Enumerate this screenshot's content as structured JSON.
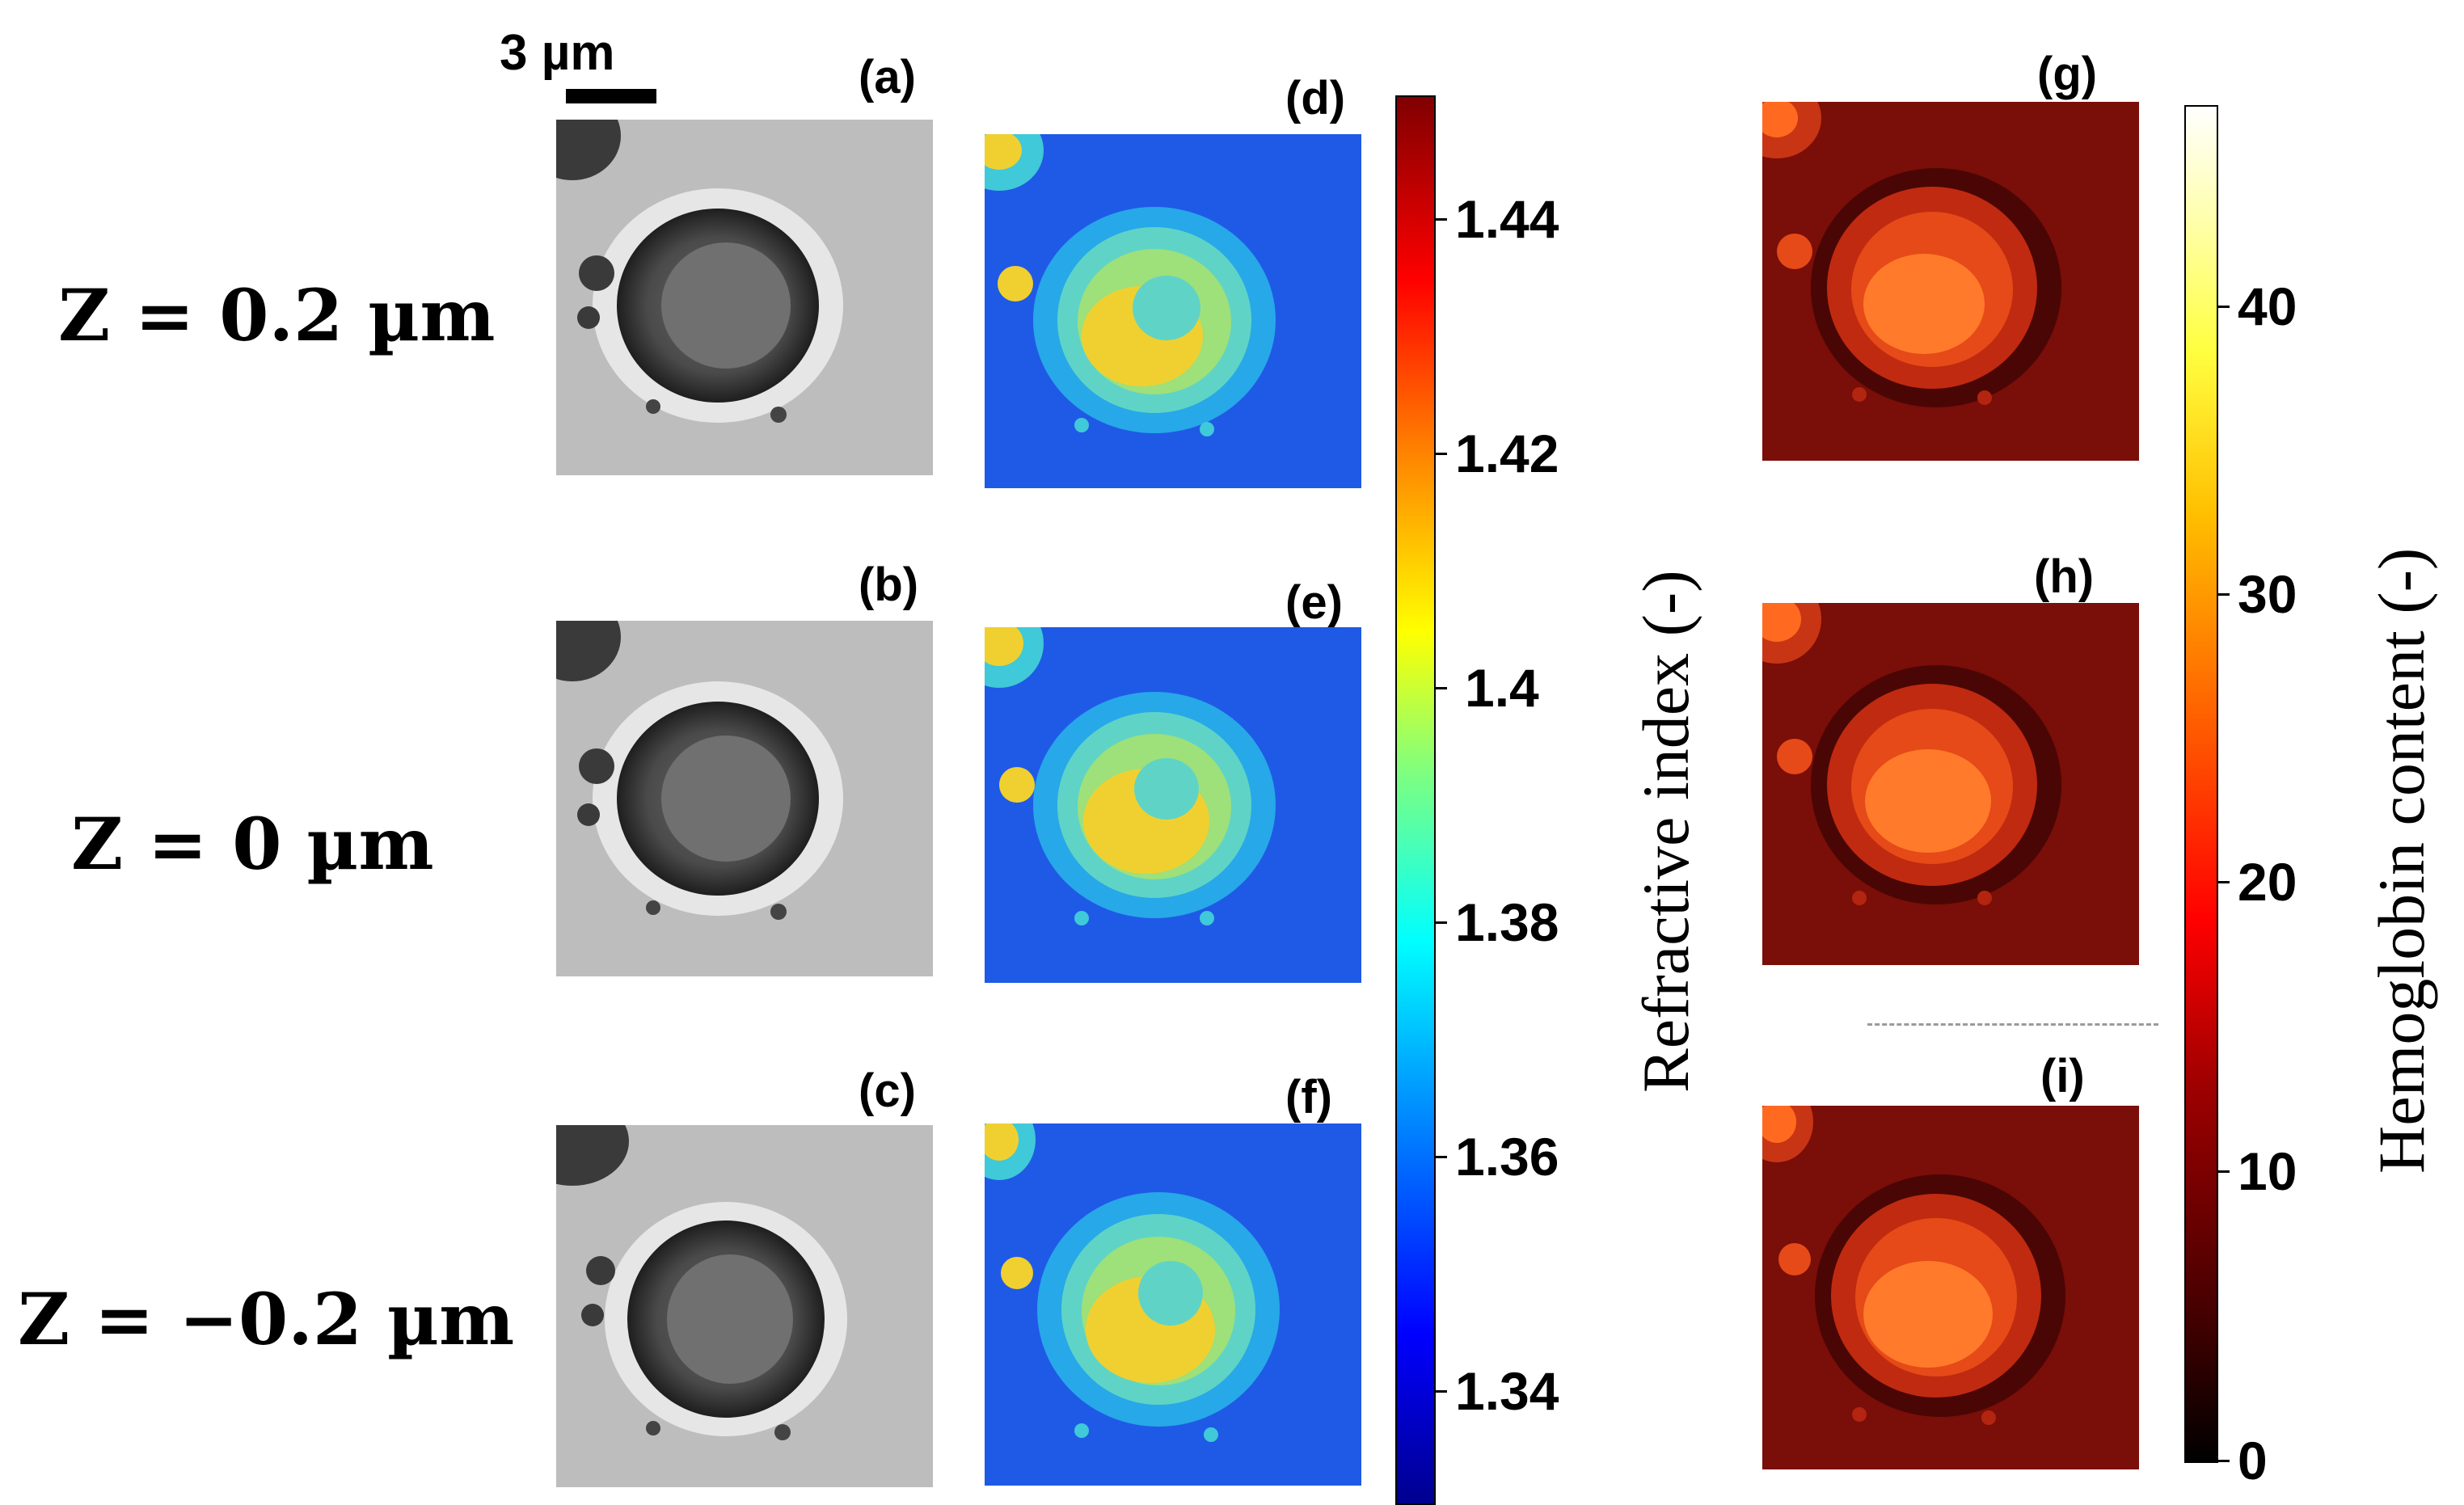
{
  "scale_bar": {
    "label": "3 µm"
  },
  "z_labels": [
    "Z = 0.2 µm",
    "Z = 0 µm",
    "Z = −0.2 µm"
  ],
  "panel_labels": [
    "(a)",
    "(b)",
    "(c)",
    "(d)",
    "(e)",
    "(f)",
    "(g)",
    "(h)",
    "(i)"
  ],
  "refractive_colorbar": {
    "title": "Refractive index (-)",
    "ticks": [
      "1.44",
      "1.42",
      "1.4",
      "1.38",
      "1.36",
      "1.34"
    ],
    "colormap": "jet"
  },
  "hemoglobin_colorbar": {
    "title": "Hemoglobin content (-)",
    "ticks": [
      "40",
      "30",
      "20",
      "10",
      "0"
    ],
    "colormap": "hot"
  }
}
